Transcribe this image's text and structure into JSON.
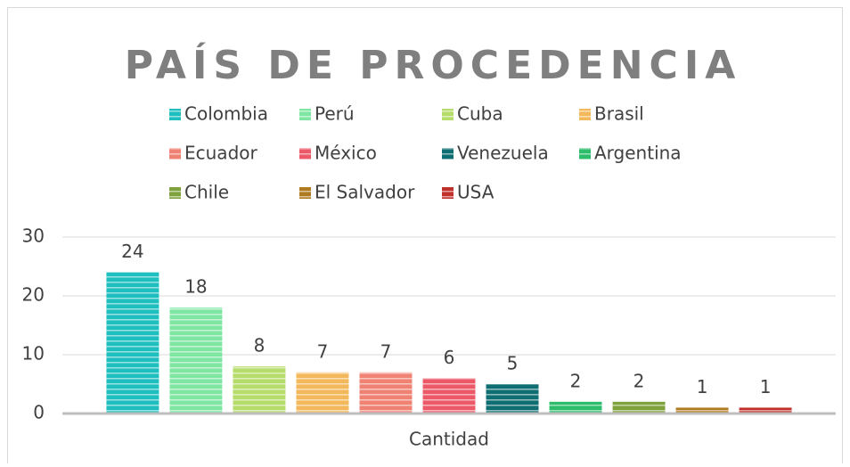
{
  "chart_data": {
    "type": "bar",
    "title": "PAÍS DE PROCEDENCIA",
    "categories": [
      "Cantidad"
    ],
    "series": [
      {
        "name": "Colombia",
        "color": "#1fbfbf",
        "values": [
          24
        ]
      },
      {
        "name": "Perú",
        "color": "#7ee6a2",
        "values": [
          18
        ]
      },
      {
        "name": "Cuba",
        "color": "#b6dc6c",
        "values": [
          8
        ]
      },
      {
        "name": "Brasil",
        "color": "#f4b85c",
        "values": [
          7
        ]
      },
      {
        "name": "Ecuador",
        "color": "#f08273",
        "values": [
          7
        ]
      },
      {
        "name": "México",
        "color": "#ec5a69",
        "values": [
          6
        ]
      },
      {
        "name": "Venezuela",
        "color": "#0f6e72",
        "values": [
          5
        ]
      },
      {
        "name": "Argentina",
        "color": "#2dbd6b",
        "values": [
          2
        ]
      },
      {
        "name": "Chile",
        "color": "#7fa23d",
        "values": [
          2
        ]
      },
      {
        "name": "El Salvador",
        "color": "#b07a20",
        "values": [
          1
        ]
      },
      {
        "name": "USA",
        "color": "#c0312b",
        "values": [
          1
        ]
      }
    ],
    "ylim": [
      0,
      30
    ],
    "yticks": [
      0,
      10,
      20,
      30
    ],
    "grid": true,
    "legend": "top"
  }
}
